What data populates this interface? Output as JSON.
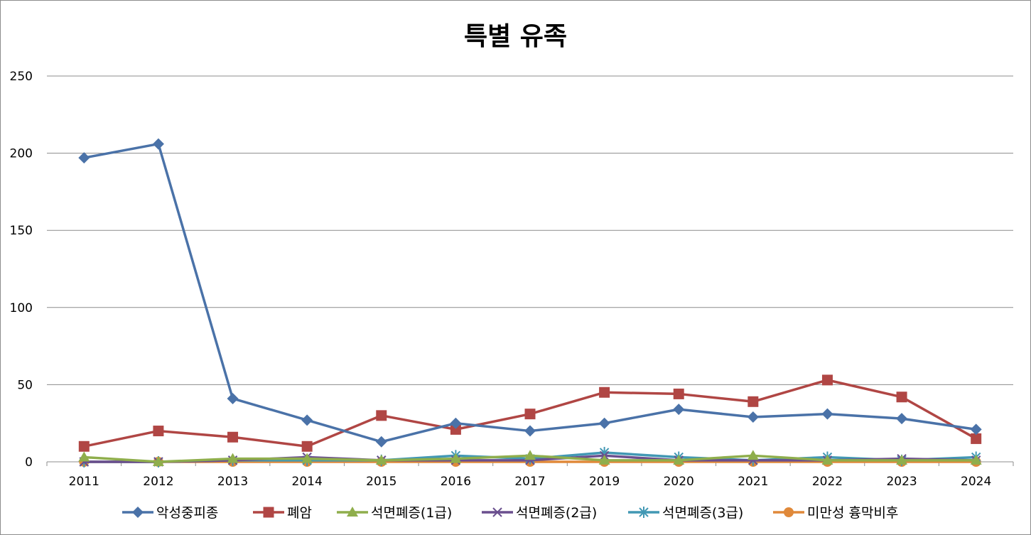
{
  "chart_data": {
    "type": "line",
    "title": "특별 유족",
    "xlabel": "",
    "ylabel": "",
    "ylim": [
      0,
      250
    ],
    "yticks": [
      0,
      50,
      100,
      150,
      200,
      250
    ],
    "grid": true,
    "legend_position": "bottom",
    "categories": [
      "2011",
      "2012",
      "2013",
      "2014",
      "2015",
      "2016",
      "2017",
      "2019",
      "2020",
      "2021",
      "2022",
      "2023",
      "2024"
    ],
    "series": [
      {
        "name": "악성중피종",
        "color": "#4a72a8",
        "marker": "diamond",
        "values": [
          197,
          206,
          41,
          27,
          13,
          25,
          20,
          25,
          34,
          29,
          31,
          28,
          21
        ]
      },
      {
        "name": "폐암",
        "color": "#b04644",
        "marker": "square",
        "values": [
          10,
          20,
          16,
          10,
          30,
          21,
          31,
          45,
          44,
          39,
          53,
          42,
          15
        ]
      },
      {
        "name": "석면폐증(1급)",
        "color": "#8fae4c",
        "marker": "triangle",
        "values": [
          3,
          0,
          2,
          2,
          1,
          2,
          4,
          1,
          1,
          4,
          1,
          1,
          1
        ]
      },
      {
        "name": "석면폐증(2급)",
        "color": "#6a4f8e",
        "marker": "x",
        "values": [
          0,
          0,
          1,
          3,
          1,
          1,
          1,
          4,
          1,
          1,
          1,
          2,
          1
        ]
      },
      {
        "name": "석면폐증(3급)",
        "color": "#4298b4",
        "marker": "star",
        "values": [
          0,
          0,
          1,
          1,
          1,
          4,
          2,
          6,
          3,
          1,
          3,
          1,
          3
        ]
      },
      {
        "name": "미만성 흉막비후",
        "color": "#e0893a",
        "marker": "circle",
        "values": [
          0,
          0,
          0,
          0,
          0,
          0,
          0,
          0,
          0,
          0,
          0,
          0,
          0
        ]
      }
    ]
  }
}
